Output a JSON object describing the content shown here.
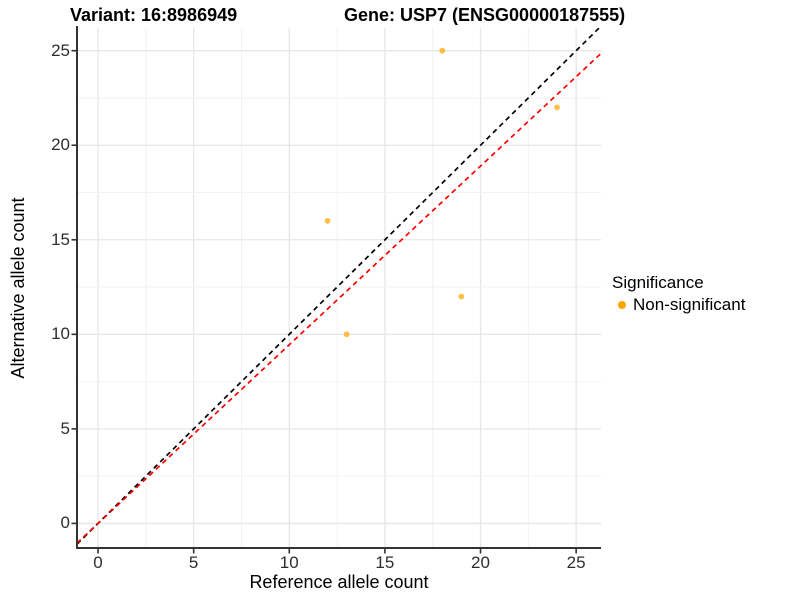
{
  "chart_data": {
    "type": "scatter",
    "titles": {
      "left": "Variant: 16:8986949",
      "right": "Gene: USP7 (ENSG00000187555)"
    },
    "xlabel": "Reference allele count",
    "ylabel": "Alternative allele count",
    "x_tick_labels": [
      "0",
      "5",
      "10",
      "15",
      "20",
      "25"
    ],
    "y_tick_labels": [
      "0",
      "5",
      "10",
      "15",
      "20",
      "25"
    ],
    "x_tick_values": [
      0,
      5,
      10,
      15,
      20,
      25
    ],
    "y_tick_values": [
      0,
      5,
      10,
      15,
      20,
      25
    ],
    "xlim": [
      -1.1,
      26.3
    ],
    "ylim": [
      -1.3,
      26.2
    ],
    "grid": true,
    "points": [
      {
        "x": 18,
        "y": 25,
        "series": "Non-significant"
      },
      {
        "x": 24,
        "y": 22,
        "series": "Non-significant"
      },
      {
        "x": 12,
        "y": 16,
        "series": "Non-significant"
      },
      {
        "x": 19,
        "y": 12,
        "series": "Non-significant"
      },
      {
        "x": 13,
        "y": 10,
        "series": "Non-significant"
      }
    ],
    "point_color": "#FFA500",
    "lines": [
      {
        "name": "identity-line",
        "slope": 1,
        "intercept": 0,
        "color": "#000000",
        "style": "dashed"
      },
      {
        "name": "expected-ratio-line",
        "slope": 0.945,
        "intercept": 0,
        "color": "#FF0000",
        "style": "dashed"
      }
    ],
    "legend": {
      "title": "Significance",
      "position": "right",
      "items": [
        {
          "label": "Non-significant",
          "color": "#FFA500"
        }
      ]
    },
    "colors": {
      "grid_major": "#E6E6E6",
      "grid_minor": "#F2F2F2",
      "axis_line": "#333333"
    }
  }
}
